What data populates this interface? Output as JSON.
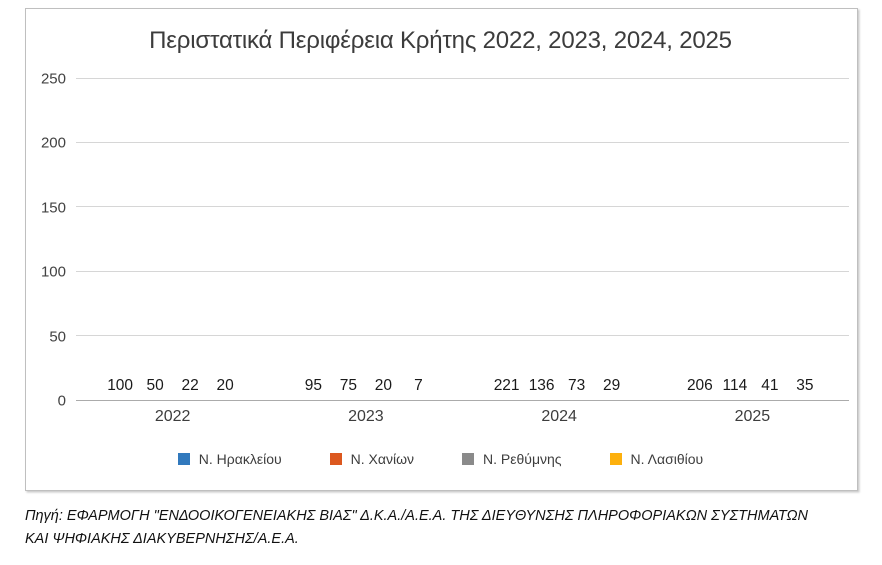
{
  "chart": {
    "title": "Περιστατικά Περιφέρεια Κρήτης 2022, 2023, 2024, 2025"
  },
  "chart_data": {
    "type": "bar",
    "title": "Περιστατικά Περιφέρεια Κρήτης 2022, 2023, 2024, 2025",
    "categories": [
      "2022",
      "2023",
      "2024",
      "2025"
    ],
    "series": [
      {
        "name": "Ν. Ηρακλείου",
        "color": "#3179BD",
        "values": [
          100,
          95,
          221,
          206
        ]
      },
      {
        "name": "Ν. Χανίων",
        "color": "#DC581F",
        "values": [
          50,
          75,
          136,
          114
        ]
      },
      {
        "name": "Ν. Ρεθύμνης",
        "color": "#8A8A8A",
        "values": [
          22,
          20,
          73,
          41
        ]
      },
      {
        "name": "Ν. Λασιθίου",
        "color": "#FDB00D",
        "values": [
          20,
          7,
          29,
          35
        ]
      }
    ],
    "xlabel": "",
    "ylabel": "",
    "ylim": [
      0,
      250
    ],
    "yticks": [
      0,
      50,
      100,
      150,
      200,
      250
    ],
    "grid": true,
    "data_labels": true,
    "legend_position": "bottom"
  },
  "style_colors": {
    "gridline": "#D6D6D6",
    "axis_line": "#ABABAB",
    "card_border": "#BFBFBF",
    "text": "#3D3D3D"
  },
  "source": {
    "line1": "Πηγή: ΕΦΑΡΜΟΓΗ \"ΕΝΔΟΟΙΚΟΓΕΝΕΙΑΚΗΣ ΒΙΑΣ\" Δ.Κ.Α./Α.Ε.Α.  ΤΗΣ ΔΙΕΥΘΥΝΣΗΣ ΠΛΗΡΟΦΟΡΙΑΚΩΝ ΣΥΣΤΗΜΑΤΩΝ",
    "line2": "ΚΑΙ ΨΗΦΙΑΚΗΣ ΔΙΑΚΥΒΕΡΝΗΣΗΣ/Α.Ε.Α."
  }
}
